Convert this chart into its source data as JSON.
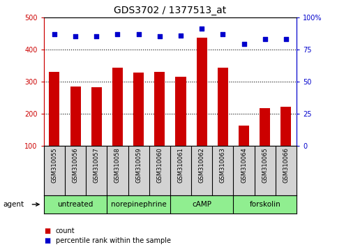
{
  "title": "GDS3702 / 1377513_at",
  "samples": [
    "GSM310055",
    "GSM310056",
    "GSM310057",
    "GSM310058",
    "GSM310059",
    "GSM310060",
    "GSM310061",
    "GSM310062",
    "GSM310063",
    "GSM310064",
    "GSM310065",
    "GSM310066"
  ],
  "counts": [
    330,
    285,
    283,
    342,
    327,
    330,
    315,
    437,
    343,
    163,
    218,
    222
  ],
  "percentiles": [
    87,
    85,
    85,
    87,
    87,
    85,
    86,
    91,
    87,
    79,
    83,
    83
  ],
  "bar_color": "#cc0000",
  "dot_color": "#0000cc",
  "ylim_left": [
    100,
    500
  ],
  "ylim_right": [
    0,
    100
  ],
  "yticks_left": [
    100,
    200,
    300,
    400,
    500
  ],
  "yticks_right": [
    0,
    25,
    50,
    75,
    100
  ],
  "yticklabels_right": [
    "0",
    "25",
    "50",
    "75",
    "100%"
  ],
  "grid_values": [
    200,
    300,
    400
  ],
  "agents": [
    {
      "label": "untreated",
      "start": 0,
      "end": 3
    },
    {
      "label": "norepinephrine",
      "start": 3,
      "end": 6
    },
    {
      "label": "cAMP",
      "start": 6,
      "end": 9
    },
    {
      "label": "forskolin",
      "start": 9,
      "end": 12
    }
  ],
  "agent_color": "#90ee90",
  "agent_border_color": "#000000",
  "sample_bg_color": "#d3d3d3",
  "sample_border_color": "#000000",
  "agent_label": "agent",
  "legend_count_color": "#cc0000",
  "legend_percentile_color": "#0000cc",
  "legend_count_label": "count",
  "legend_percentile_label": "percentile rank within the sample",
  "background_color": "#ffffff",
  "plot_bg_color": "#ffffff",
  "title_fontsize": 10,
  "tick_fontsize": 7,
  "sample_fontsize": 6,
  "agent_fontsize": 7.5,
  "legend_fontsize": 7
}
